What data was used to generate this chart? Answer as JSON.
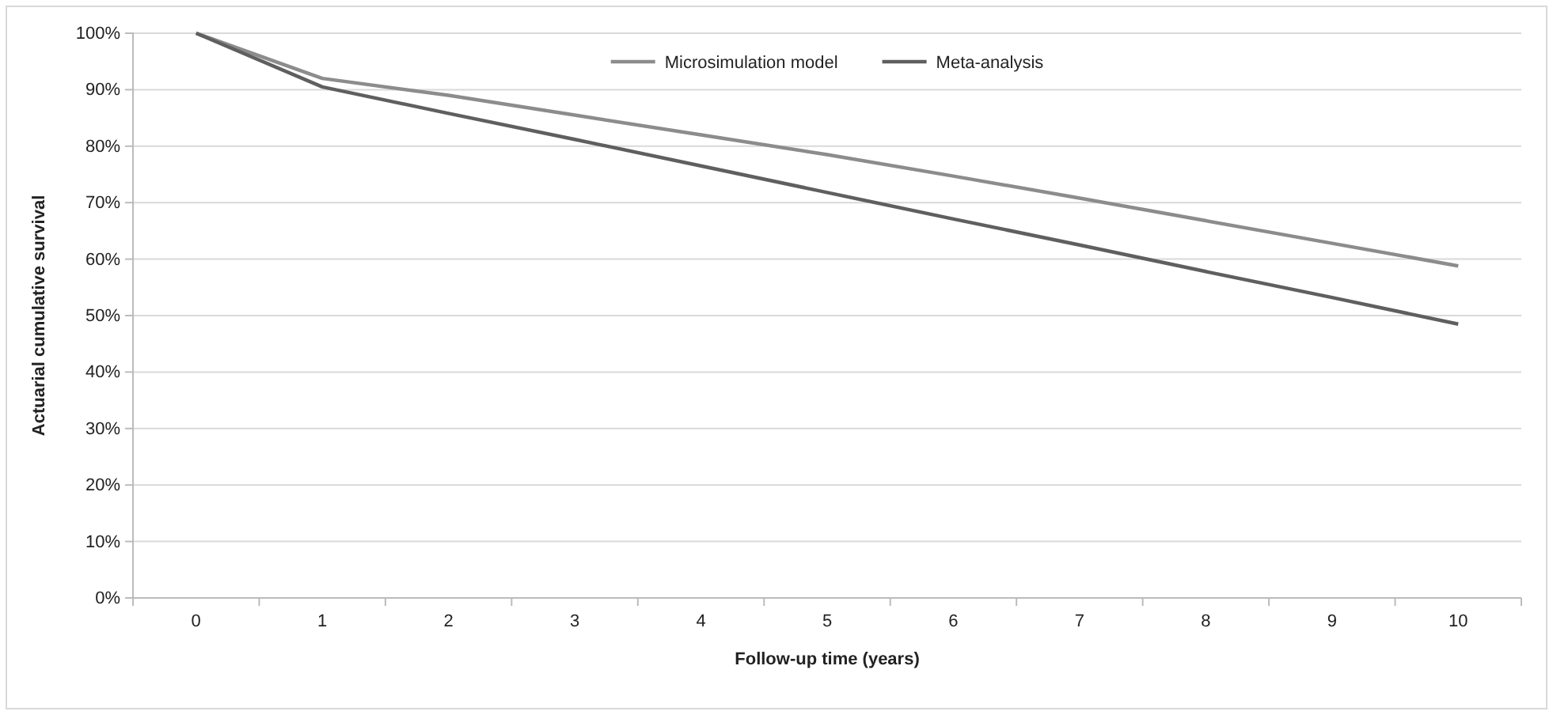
{
  "chart_data": {
    "type": "line",
    "xlabel": "Follow-up time (years)",
    "ylabel": "Actuarial cumulative survival",
    "categories": [
      "0",
      "1",
      "2",
      "3",
      "4",
      "5",
      "6",
      "7",
      "8",
      "9",
      "10"
    ],
    "series": [
      {
        "name": "Microsimulation model",
        "color": "#8c8c8c",
        "values": [
          100,
          92,
          89,
          85.5,
          82,
          78.5,
          74.7,
          70.8,
          66.8,
          62.8,
          58.8
        ]
      },
      {
        "name": "Meta-analysis",
        "color": "#5f5f5f",
        "values": [
          100,
          90.5,
          85.8,
          81.2,
          76.5,
          71.8,
          67.1,
          62.5,
          57.8,
          53.2,
          48.5
        ]
      }
    ],
    "ylim": [
      0,
      100
    ],
    "yticks": [
      {
        "value": 0,
        "label": "0%"
      },
      {
        "value": 10,
        "label": "10%"
      },
      {
        "value": 20,
        "label": "20%"
      },
      {
        "value": 30,
        "label": "30%"
      },
      {
        "value": 40,
        "label": "40%"
      },
      {
        "value": 50,
        "label": "50%"
      },
      {
        "value": 60,
        "label": "60%"
      },
      {
        "value": 70,
        "label": "70%"
      },
      {
        "value": 80,
        "label": "80%"
      },
      {
        "value": 90,
        "label": "90%"
      },
      {
        "value": 100,
        "label": "100%"
      }
    ],
    "grid": "y",
    "legend": "top",
    "marker": "none",
    "line_style": "solid"
  }
}
